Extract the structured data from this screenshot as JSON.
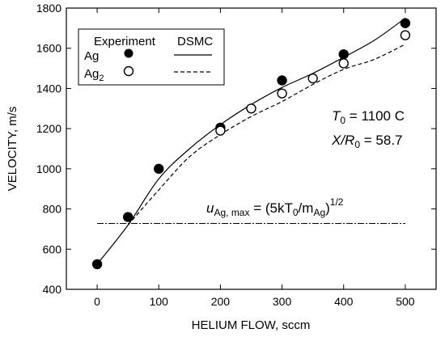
{
  "chart_data": {
    "type": "scatter",
    "xlabel": "HELIUM FLOW, sccm",
    "ylabel": "VELOCITY, m/s",
    "xlim": [
      -50,
      550
    ],
    "ylim": [
      400,
      1800
    ],
    "xticks": [
      "0",
      "100",
      "200",
      "300",
      "400",
      "500"
    ],
    "yticks": [
      "400",
      "600",
      "800",
      "1000",
      "1200",
      "1400",
      "1600",
      "1800"
    ],
    "grid": false,
    "legend": {
      "placement": "top-left",
      "header_experiment": "Experiment",
      "header_dsmc": "DSMC",
      "entries": [
        {
          "label": "Ag",
          "marker": "filled-circle",
          "line": "solid"
        },
        {
          "label": "Ag",
          "subscript": "2",
          "marker": "open-circle",
          "line": "dashed"
        }
      ]
    },
    "series": [
      {
        "name": "Ag",
        "kind": "experiment",
        "marker": "filled-circle",
        "x": [
          0,
          50,
          100,
          200,
          300,
          400,
          500
        ],
        "y": [
          525,
          760,
          1000,
          1205,
          1440,
          1570,
          1725
        ]
      },
      {
        "name": "Ag2",
        "kind": "experiment",
        "marker": "open-circle",
        "x": [
          200,
          250,
          300,
          350,
          400,
          500
        ],
        "y": [
          1190,
          1300,
          1375,
          1450,
          1525,
          1665
        ]
      },
      {
        "name": "Ag",
        "kind": "DSMC",
        "line": "solid",
        "x": [
          0,
          50,
          100,
          150,
          200,
          250,
          300,
          350,
          400,
          450,
          500
        ],
        "y": [
          525,
          720,
          950,
          1100,
          1220,
          1320,
          1405,
          1475,
          1555,
          1640,
          1750
        ]
      },
      {
        "name": "Ag2",
        "kind": "DSMC",
        "line": "dashed",
        "x": [
          50,
          100,
          150,
          200,
          250,
          300,
          350,
          400,
          450,
          500
        ],
        "y": [
          720,
          895,
          1060,
          1170,
          1260,
          1335,
          1420,
          1495,
          1545,
          1620
        ]
      }
    ],
    "reference_line": {
      "style": "dash-dot",
      "y": 728,
      "x_range": [
        0,
        500
      ]
    },
    "annotations": {
      "t0_symbol": "T",
      "t0_sub": "0",
      "t0_value": " = 1100 C",
      "xr_symbol": "X/R",
      "xr_sub": "0",
      "xr_value": " = 58.7",
      "eq_u": "u",
      "eq_u_sub": "Ag, max",
      "eq_mid": " = (5kT",
      "eq_t_sub": "0",
      "eq_over": "/m",
      "eq_m_sub": "Ag",
      "eq_close": ")",
      "eq_exp": "1/2"
    },
    "colors": {
      "axis": "#000000",
      "series": "#000000",
      "background": "#ffffff"
    }
  }
}
